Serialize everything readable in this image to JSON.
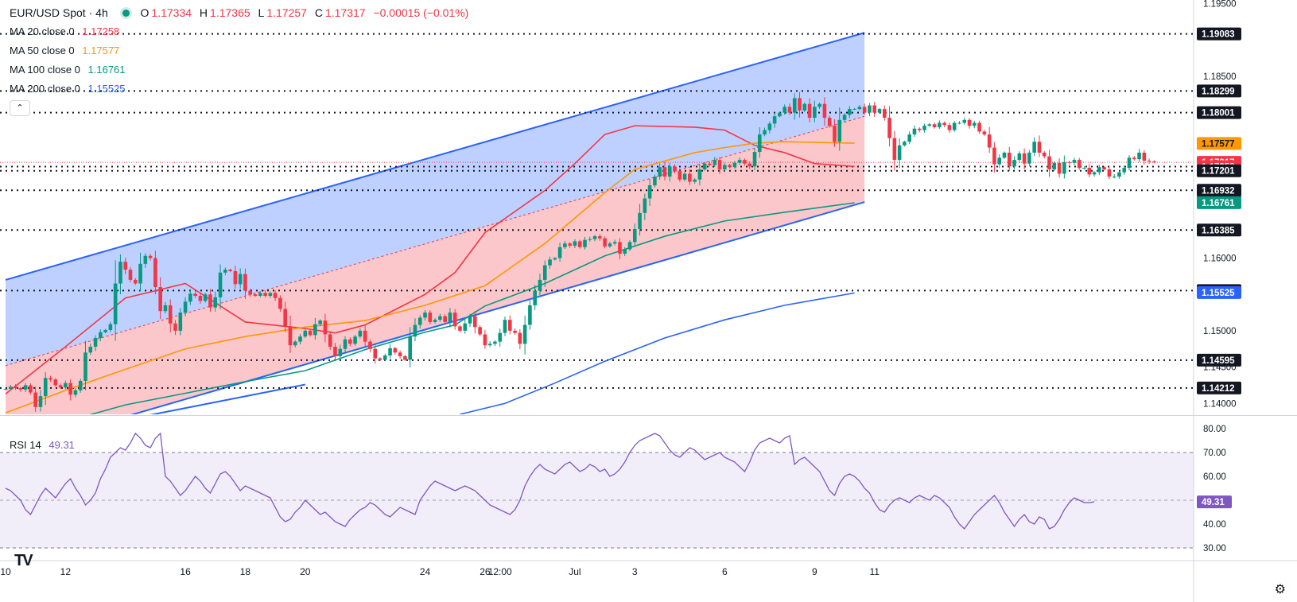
{
  "header": {
    "symbol": "EUR/USD Spot",
    "interval": "4h",
    "open_label": "O",
    "open": "1.17334",
    "high_label": "H",
    "high": "1.17365",
    "low_label": "L",
    "low": "1.17257",
    "close_label": "C",
    "close": "1.17317",
    "change": "−0.00015 (−0.01%)",
    "status_color": "#089981"
  },
  "indicators": [
    {
      "label": "MA 20 close 0",
      "value": "1.17258",
      "color": "#f23645"
    },
    {
      "label": "MA 50 close 0",
      "value": "1.17577",
      "color": "#ff9800"
    },
    {
      "label": "MA 100 close 0",
      "value": "1.16761",
      "color": "#089981"
    },
    {
      "label": "MA 200 close 0",
      "value": "1.15525",
      "color": "#2962ff"
    }
  ],
  "collapse_icon": "chevron-up-icon",
  "rsi": {
    "label": "RSI 14",
    "value": "49.31",
    "color": "#7e57c2"
  },
  "footer": {
    "logo": "TV",
    "settings_icon": "gear-icon"
  },
  "colors": {
    "up": "#089981",
    "down": "#f23645",
    "channel": "#2962ff",
    "text": "#131722"
  },
  "chart_data": {
    "type": "candlestick",
    "x_ticks": [
      {
        "t": 0,
        "label": "10"
      },
      {
        "t": 12,
        "label": "12"
      },
      {
        "t": 36,
        "label": "16"
      },
      {
        "t": 48,
        "label": "18"
      },
      {
        "t": 60,
        "label": "20"
      },
      {
        "t": 84,
        "label": "24"
      },
      {
        "t": 96,
        "label": "26"
      },
      {
        "t": 99,
        "label": "12:00"
      },
      {
        "t": 114,
        "label": "Jul"
      },
      {
        "t": 126,
        "label": "3"
      },
      {
        "t": 144,
        "label": "6"
      },
      {
        "t": 162,
        "label": "9"
      },
      {
        "t": 174,
        "label": "11"
      }
    ],
    "price_ticks": [
      "1.19500",
      "1.18500",
      "1.16000",
      "1.15000",
      "1.14500",
      "1.14000"
    ],
    "price_range": [
      1.1385,
      1.1955
    ],
    "levels": [
      {
        "value": 1.19083,
        "label": "1.19083",
        "dotted": true,
        "fill": "#131722",
        "fg": "#ffffff"
      },
      {
        "value": 1.18299,
        "label": "1.18299",
        "dotted": true,
        "fill": "#131722",
        "fg": "#ffffff"
      },
      {
        "value": 1.18001,
        "label": "1.18001",
        "dotted": true,
        "fill": "#131722",
        "fg": "#ffffff"
      },
      {
        "value": 1.17577,
        "label": "1.17577",
        "dotted": false,
        "fill": "#ff9800",
        "fg": "#131722"
      },
      {
        "value": 1.17317,
        "label": "1.17317",
        "dotted": false,
        "fill": "#f23645",
        "fg": "#ffffff"
      },
      {
        "value": 1.17258,
        "label": "1.17258",
        "dotted": true,
        "fill": "#f23645",
        "fg": "#ffffff"
      },
      {
        "value": 1.17201,
        "label": "1.17201",
        "dotted": true,
        "fill": "#131722",
        "fg": "#ffffff"
      },
      {
        "value": 1.16932,
        "label": "1.16932",
        "dotted": true,
        "fill": "#131722",
        "fg": "#ffffff"
      },
      {
        "value": 1.1677,
        "label": "1.16770",
        "dotted": false,
        "fill": "#131722",
        "fg": "#ffffff"
      },
      {
        "value": 1.16761,
        "label": "1.16761",
        "dotted": false,
        "fill": "#089981",
        "fg": "#ffffff"
      },
      {
        "value": 1.16385,
        "label": "1.16385",
        "dotted": true,
        "fill": "#131722",
        "fg": "#ffffff"
      },
      {
        "value": 1.15552,
        "label": "1.15552",
        "dotted": true,
        "fill": "#131722",
        "fg": "#ffffff"
      },
      {
        "value": 1.15525,
        "label": "1.15525",
        "dotted": false,
        "fill": "#2962ff",
        "fg": "#ffffff"
      },
      {
        "value": 1.14595,
        "label": "1.14595",
        "dotted": true,
        "fill": "#131722",
        "fg": "#ffffff"
      },
      {
        "value": 1.14212,
        "label": "1.14212",
        "dotted": true,
        "fill": "#131722",
        "fg": "#ffffff"
      }
    ],
    "channel": {
      "upper": [
        [
          0,
          1.157
        ],
        [
          172,
          1.191
        ]
      ],
      "middle": [
        [
          0,
          1.1452
        ],
        [
          172,
          1.1795
        ]
      ],
      "lower": [
        [
          0,
          1.1334
        ],
        [
          172,
          1.1677
        ]
      ]
    },
    "ma200_extra_segment": [
      [
        0,
        1.1345
      ],
      [
        60,
        1.1426
      ]
    ],
    "ma_series": [
      {
        "name": "MA 20",
        "color": "#f23645",
        "points": [
          [
            0,
            1.1413
          ],
          [
            12,
            1.1478
          ],
          [
            24,
            1.1545
          ],
          [
            36,
            1.1565
          ],
          [
            48,
            1.1512
          ],
          [
            60,
            1.1503
          ],
          [
            66,
            1.1497
          ],
          [
            72,
            1.1508
          ],
          [
            84,
            1.155
          ],
          [
            90,
            1.158
          ],
          [
            96,
            1.1635
          ],
          [
            108,
            1.1693
          ],
          [
            114,
            1.173
          ],
          [
            120,
            1.177
          ],
          [
            126,
            1.1782
          ],
          [
            138,
            1.178
          ],
          [
            144,
            1.1776
          ],
          [
            150,
            1.1755
          ],
          [
            156,
            1.1745
          ],
          [
            162,
            1.173
          ],
          [
            170,
            1.1726
          ]
        ]
      },
      {
        "name": "MA 50",
        "color": "#ff9800",
        "points": [
          [
            0,
            1.1387
          ],
          [
            12,
            1.1418
          ],
          [
            24,
            1.1447
          ],
          [
            36,
            1.1475
          ],
          [
            48,
            1.1492
          ],
          [
            60,
            1.1505
          ],
          [
            72,
            1.1514
          ],
          [
            84,
            1.1535
          ],
          [
            96,
            1.1562
          ],
          [
            108,
            1.162
          ],
          [
            114,
            1.1655
          ],
          [
            120,
            1.169
          ],
          [
            126,
            1.1722
          ],
          [
            138,
            1.1745
          ],
          [
            144,
            1.1752
          ],
          [
            150,
            1.1758
          ],
          [
            156,
            1.176
          ],
          [
            170,
            1.1758
          ]
        ]
      },
      {
        "name": "MA 100",
        "color": "#089981",
        "points": [
          [
            0,
            1.1352
          ],
          [
            12,
            1.1375
          ],
          [
            24,
            1.1398
          ],
          [
            36,
            1.1414
          ],
          [
            48,
            1.143
          ],
          [
            60,
            1.1445
          ],
          [
            72,
            1.1474
          ],
          [
            84,
            1.1498
          ],
          [
            90,
            1.1508
          ],
          [
            96,
            1.1534
          ],
          [
            108,
            1.1565
          ],
          [
            120,
            1.1603
          ],
          [
            132,
            1.163
          ],
          [
            144,
            1.1651
          ],
          [
            156,
            1.1663
          ],
          [
            170,
            1.1676
          ]
        ]
      },
      {
        "name": "MA 200",
        "color": "#2962ff",
        "points": [
          [
            91,
            1.1385
          ],
          [
            100,
            1.14
          ],
          [
            110,
            1.1428
          ],
          [
            120,
            1.1458
          ],
          [
            132,
            1.149
          ],
          [
            144,
            1.1515
          ],
          [
            156,
            1.1535
          ],
          [
            170,
            1.1552
          ]
        ]
      }
    ],
    "ohlc_start": 1.142,
    "closes": [
      1.142,
      1.1423,
      1.1421,
      1.1419,
      1.1425,
      1.1415,
      1.1395,
      1.141,
      1.1435,
      1.1433,
      1.1425,
      1.1422,
      1.1428,
      1.1412,
      1.1418,
      1.1431,
      1.147,
      1.1478,
      1.149,
      1.1498,
      1.1501,
      1.1509,
      1.1565,
      1.1595,
      1.1584,
      1.157,
      1.1565,
      1.1592,
      1.1603,
      1.16,
      1.156,
      1.1527,
      1.1535,
      1.151,
      1.15,
      1.1525,
      1.154,
      1.1551,
      1.1548,
      1.1541,
      1.155,
      1.1532,
      1.1546,
      1.158,
      1.1584,
      1.1582,
      1.1564,
      1.1578,
      1.1555,
      1.155,
      1.1548,
      1.1552,
      1.1548,
      1.1552,
      1.1545,
      1.153,
      1.1506,
      1.148,
      1.1485,
      1.1492,
      1.15,
      1.1494,
      1.1509,
      1.1514,
      1.1495,
      1.1478,
      1.1465,
      1.1475,
      1.1488,
      1.1482,
      1.1492,
      1.15,
      1.1485,
      1.1475,
      1.1462,
      1.146,
      1.1466,
      1.1476,
      1.147,
      1.1465,
      1.146,
      1.1492,
      1.1508,
      1.1518,
      1.1525,
      1.1512,
      1.1515,
      1.152,
      1.1512,
      1.1525,
      1.1506,
      1.15,
      1.151,
      1.152,
      1.1505,
      1.1495,
      1.148,
      1.1482,
      1.1485,
      1.1497,
      1.1515,
      1.15,
      1.1497,
      1.1482,
      1.1508,
      1.1535,
      1.1555,
      1.157,
      1.159,
      1.1598,
      1.16,
      1.1615,
      1.162,
      1.1617,
      1.1623,
      1.1615,
      1.1625,
      1.1626,
      1.163,
      1.1627,
      1.1616,
      1.162,
      1.1622,
      1.1606,
      1.1612,
      1.1622,
      1.164,
      1.1662,
      1.1682,
      1.17,
      1.1712,
      1.1725,
      1.1712,
      1.1726,
      1.172,
      1.1708,
      1.1716,
      1.1705,
      1.1708,
      1.1722,
      1.173,
      1.1728,
      1.1735,
      1.1722,
      1.1728,
      1.1725,
      1.1731,
      1.1735,
      1.173,
      1.1726,
      1.1746,
      1.177,
      1.1776,
      1.1785,
      1.1795,
      1.18,
      1.1808,
      1.18,
      1.182,
      1.1803,
      1.1812,
      1.1793,
      1.1808,
      1.1812,
      1.1793,
      1.1782,
      1.176,
      1.179,
      1.1797,
      1.1805,
      1.1805,
      1.1808,
      1.18,
      1.181,
      1.18,
      1.1805,
      1.1793,
      1.1765,
      1.1735,
      1.1755,
      1.176,
      1.177,
      1.1778,
      1.1776,
      1.1782,
      1.1784,
      1.178,
      1.1786,
      1.1783,
      1.1776,
      1.1786,
      1.1786,
      1.179,
      1.1782,
      1.1786,
      1.1774,
      1.177,
      1.1752,
      1.1729,
      1.1738,
      1.1745,
      1.1726,
      1.1735,
      1.1744,
      1.173,
      1.1745,
      1.176,
      1.1745,
      1.174,
      1.1722,
      1.1731,
      1.1716,
      1.1732,
      1.1731,
      1.1735,
      1.1724,
      1.1724,
      1.1715,
      1.1718,
      1.1725,
      1.1722,
      1.1712,
      1.1712,
      1.1718,
      1.1724,
      1.1738,
      1.1736,
      1.1745,
      1.1734,
      1.1733,
      1.1732
    ],
    "rsi": {
      "range": [
        25,
        85
      ],
      "ticks": [
        80,
        70,
        60,
        40,
        30
      ],
      "bands": [
        70,
        30
      ],
      "midline": 50,
      "values": [
        55,
        54,
        52,
        50,
        46,
        44,
        48,
        52,
        55,
        53,
        51,
        54,
        57,
        59,
        55,
        52,
        48,
        50,
        53,
        59,
        63,
        68,
        70,
        72,
        71,
        74,
        78,
        76,
        73,
        72,
        76,
        78,
        60,
        58,
        55,
        52,
        54,
        57,
        60,
        58,
        55,
        53,
        57,
        61,
        62,
        60,
        57,
        54,
        56,
        55,
        54,
        53,
        52,
        51,
        47,
        43,
        41,
        42,
        45,
        47,
        50,
        48,
        46,
        44,
        45,
        43,
        41,
        40,
        39,
        42,
        44,
        46,
        47,
        49,
        48,
        46,
        44,
        43,
        45,
        47,
        46,
        45,
        44,
        50,
        53,
        56,
        58,
        57,
        56,
        55,
        54,
        55,
        56,
        55,
        54,
        52,
        50,
        48,
        47,
        46,
        45,
        44,
        46,
        50,
        56,
        60,
        63,
        65,
        63,
        62,
        61,
        63,
        65,
        66,
        64,
        62,
        63,
        65,
        64,
        62,
        63,
        60,
        61,
        63,
        66,
        70,
        73,
        75,
        76,
        77,
        78,
        77,
        74,
        71,
        69,
        68,
        70,
        72,
        71,
        69,
        67,
        68,
        69,
        70,
        68,
        67,
        66,
        64,
        62,
        66,
        71,
        74,
        75,
        76,
        75,
        74,
        76,
        77,
        65,
        67,
        68,
        66,
        64,
        62,
        58,
        54,
        52,
        57,
        60,
        61,
        60,
        58,
        55,
        53,
        49,
        46,
        45,
        48,
        50,
        51,
        50,
        49,
        51,
        52,
        51,
        50,
        52,
        51,
        49,
        47,
        43,
        40,
        38,
        41,
        44,
        46,
        48,
        50,
        52,
        49,
        45,
        42,
        39,
        42,
        44,
        41,
        40,
        43,
        42,
        38,
        39,
        42,
        46,
        49,
        51,
        50,
        49,
        49,
        49.31
      ]
    }
  }
}
